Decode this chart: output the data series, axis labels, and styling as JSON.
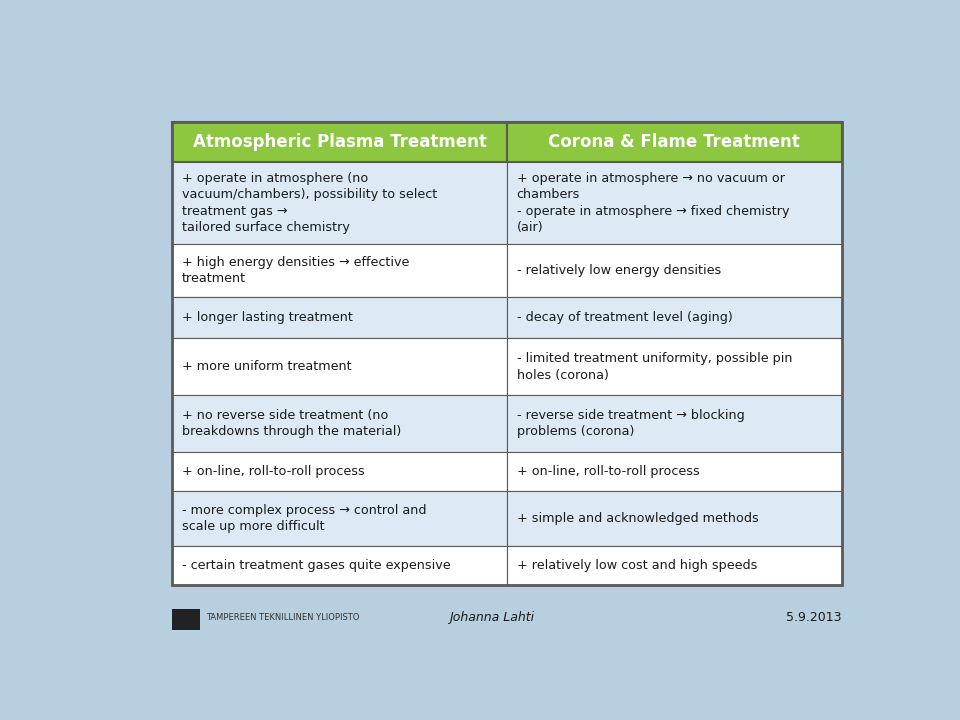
{
  "title_left": "Atmospheric Plasma Treatment",
  "title_right": "Corona & Flame Treatment",
  "header_bg": "#8dc63f",
  "header_text_color": "#ffffff",
  "border_color": "#5a5a5a",
  "background_color": "#b8cfe0",
  "rows": [
    {
      "left": "+ operate in atmosphere (no\nvacuum/chambers), possibility to select\ntreatment gas →\ntailored surface chemistry",
      "right": "+ operate in atmosphere → no vacuum or\nchambers\n- operate in atmosphere → fixed chemistry\n(air)",
      "bg": "#ddeaf5"
    },
    {
      "left": "+ high energy densities → effective\ntreatment",
      "right": "- relatively low energy densities",
      "bg": "#ffffff"
    },
    {
      "left": "+ longer lasting treatment",
      "right": "- decay of treatment level (aging)",
      "bg": "#ddeaf5"
    },
    {
      "left": "+ more uniform treatment",
      "right": "- limited treatment uniformity, possible pin\nholes (corona)",
      "bg": "#ffffff"
    },
    {
      "left": "+ no reverse side treatment (no\nbreakdowns through the material)",
      "right": "- reverse side treatment → blocking\nproblems (corona)",
      "bg": "#ddeaf5"
    },
    {
      "left": "+ on-line, roll-to-roll process",
      "right": "+ on-line, roll-to-roll process",
      "bg": "#ffffff"
    },
    {
      "left": "- more complex process → control and\nscale up more difficult",
      "right": "+ simple and acknowledged methods",
      "bg": "#ddeaf5"
    },
    {
      "left": "- certain treatment gases quite expensive",
      "right": "+ relatively low cost and high speeds",
      "bg": "#ffffff"
    }
  ],
  "footer_left": "TAMPEREEN TEKNILLINEN YLIOPISTO",
  "footer_center": "Johanna Lahti",
  "footer_right": "5.9.2013"
}
